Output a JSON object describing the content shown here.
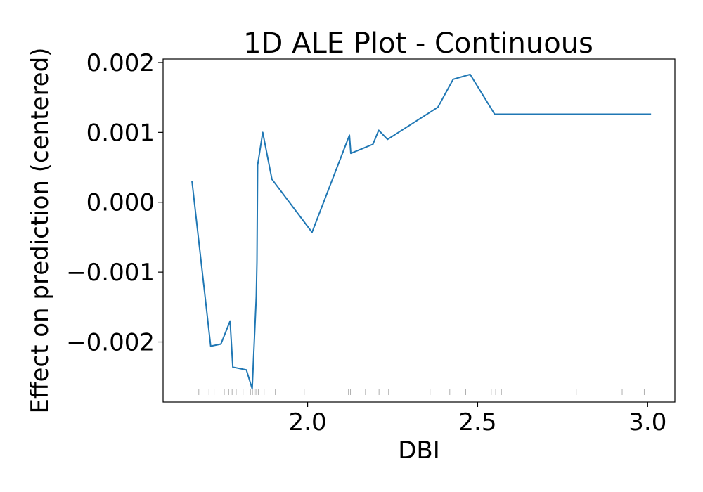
{
  "chart_data": {
    "type": "line",
    "title": "1D ALE Plot - Continuous",
    "xlabel": "DBI",
    "ylabel": "Effect on prediction (centered)",
    "xlim": [
      1.575,
      3.08
    ],
    "ylim": [
      -0.00286,
      0.00205
    ],
    "x_ticks": [
      2.0,
      2.5,
      3.0
    ],
    "x_tick_labels": [
      "2.0",
      "2.5",
      "3.0"
    ],
    "y_ticks": [
      -0.002,
      -0.001,
      0.0,
      0.001,
      0.002
    ],
    "y_tick_labels": [
      "−0.002",
      "−0.001",
      "0.000",
      "0.001",
      "0.002"
    ],
    "grid": false,
    "colors": {
      "line": "#1f77b4",
      "rug": "#b0b0b0",
      "frame": "#000000"
    },
    "series": [
      {
        "x": [
          1.66,
          1.715,
          1.745,
          1.772,
          1.78,
          1.82,
          1.837,
          1.849,
          1.851,
          1.853,
          1.868,
          1.895,
          2.013,
          2.123,
          2.127,
          2.192,
          2.209,
          2.235,
          2.383,
          2.428,
          2.478,
          2.55,
          3.01
        ],
        "y": [
          0.0003,
          -0.00206,
          -0.00203,
          -0.0017,
          -0.00236,
          -0.0024,
          -0.00267,
          -0.00135,
          -0.00085,
          0.00053,
          0.001,
          0.00033,
          -0.00043,
          0.00096,
          0.0007,
          0.00083,
          0.00103,
          0.0009,
          0.00136,
          0.00176,
          0.00183,
          0.00126,
          0.00126
        ]
      }
    ],
    "rug_x": [
      1.68,
      1.71,
      1.725,
      1.755,
      1.768,
      1.778,
      1.79,
      1.81,
      1.822,
      1.832,
      1.838,
      1.843,
      1.848,
      1.855,
      1.872,
      1.905,
      1.99,
      2.12,
      2.126,
      2.17,
      2.21,
      2.238,
      2.36,
      2.418,
      2.465,
      2.54,
      2.553,
      2.57,
      2.79,
      2.925,
      2.99
    ]
  }
}
